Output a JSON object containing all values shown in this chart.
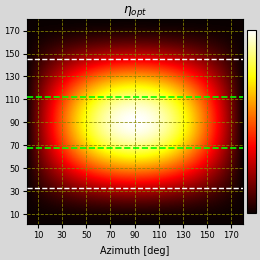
{
  "title": "$\\eta_{opt}$",
  "xlabel": "Azimuth [deg]",
  "ylabel_ticks": [
    10,
    30,
    50,
    70,
    90,
    110,
    130,
    150,
    170
  ],
  "xlabel_ticks": [
    10,
    30,
    50,
    70,
    90,
    110,
    130,
    150,
    170
  ],
  "azimuth_range": [
    1,
    180
  ],
  "polar_range": [
    1,
    180
  ],
  "white_dashed_rows": [
    33,
    145
  ],
  "green_dashed_rows": [
    68,
    112
  ],
  "dashed_cols": [
    10,
    30,
    50,
    70,
    90,
    110,
    130,
    150,
    170
  ],
  "dashed_rows": [
    10,
    30,
    50,
    70,
    90,
    110,
    130,
    150,
    170
  ],
  "colormap": "hot",
  "figsize": [
    2.6,
    2.6
  ],
  "dpi": 100,
  "polar_exponent": 2.0,
  "azimuth_exponent": 1.0,
  "polar_sigma": 55.0,
  "title_fontsize": 9,
  "label_fontsize": 7,
  "tick_fontsize": 6
}
